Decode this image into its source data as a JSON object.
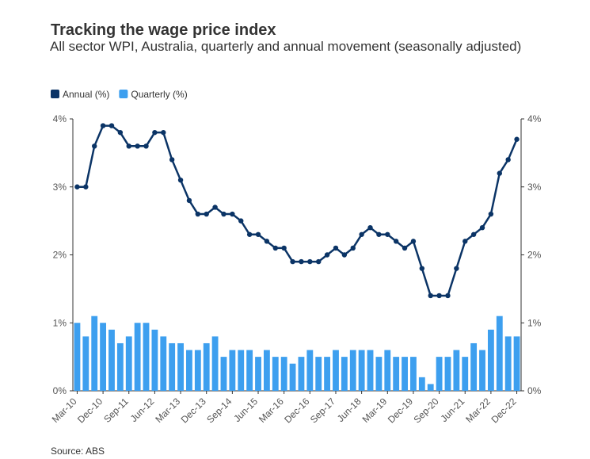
{
  "chart_data": {
    "type": "bar-line",
    "title": "Tracking the wage price index",
    "subtitle": "All sector WPI, Australia, quarterly and annual movement (seasonally adjusted)",
    "source": "Source: ABS",
    "categories": [
      "Mar-10",
      null,
      null,
      "Dec-10",
      null,
      null,
      "Sep-11",
      null,
      null,
      "Jun-12",
      null,
      null,
      "Mar-13",
      null,
      null,
      "Dec-13",
      null,
      null,
      "Sep-14",
      null,
      null,
      "Jun-15",
      null,
      null,
      "Mar-16",
      null,
      null,
      "Dec-16",
      null,
      null,
      "Sep-17",
      null,
      null,
      "Jun-18",
      null,
      null,
      "Mar-19",
      null,
      null,
      "Dec-19",
      null,
      null,
      "Sep-20",
      null,
      null,
      "Jun-21",
      null,
      null,
      "Mar-22",
      null,
      null,
      "Dec-22"
    ],
    "series": [
      {
        "name": "Annual (%)",
        "color": "#0b3466",
        "kind": "line",
        "axis": "y2",
        "values": [
          3.0,
          3.0,
          3.6,
          3.9,
          3.9,
          3.8,
          3.6,
          3.6,
          3.6,
          3.8,
          3.8,
          3.4,
          3.1,
          2.8,
          2.6,
          2.6,
          2.7,
          2.6,
          2.6,
          2.5,
          2.3,
          2.3,
          2.2,
          2.1,
          2.1,
          1.9,
          1.9,
          1.9,
          1.9,
          2.0,
          2.1,
          2.0,
          2.1,
          2.3,
          2.4,
          2.3,
          2.3,
          2.2,
          2.1,
          2.2,
          1.8,
          1.4,
          1.4,
          1.4,
          1.8,
          2.2,
          2.3,
          2.4,
          2.6,
          3.2,
          3.4,
          3.7
        ]
      },
      {
        "name": "Quarterly (%)",
        "color": "#3d9fef",
        "kind": "bar",
        "values": [
          1.0,
          0.8,
          1.1,
          1.0,
          0.9,
          0.7,
          0.8,
          1.0,
          1.0,
          0.9,
          0.8,
          0.7,
          0.7,
          0.6,
          0.6,
          0.7,
          0.8,
          0.5,
          0.6,
          0.6,
          0.6,
          0.5,
          0.6,
          0.5,
          0.5,
          0.4,
          0.5,
          0.6,
          0.5,
          0.5,
          0.6,
          0.5,
          0.6,
          0.6,
          0.6,
          0.5,
          0.6,
          0.5,
          0.5,
          0.5,
          0.2,
          0.1,
          0.5,
          0.5,
          0.6,
          0.5,
          0.7,
          0.6,
          0.9,
          1.1,
          0.8,
          0.8
        ]
      }
    ],
    "ylim": [
      0,
      4
    ],
    "yticks": [
      {
        "value": 0,
        "label": "0%"
      },
      {
        "value": 1,
        "label": "1%"
      },
      {
        "value": 2,
        "label": "2%"
      },
      {
        "value": 3,
        "label": "3%"
      },
      {
        "value": 4,
        "label": "4%"
      }
    ],
    "y2lim": [
      0,
      4
    ],
    "y2ticks": [
      {
        "value": 0,
        "label": "0%"
      },
      {
        "value": 1,
        "label": "1%"
      },
      {
        "value": 2,
        "label": "2%"
      },
      {
        "value": 3,
        "label": "3%"
      },
      {
        "value": 4,
        "label": "4%"
      }
    ],
    "grid": false
  }
}
